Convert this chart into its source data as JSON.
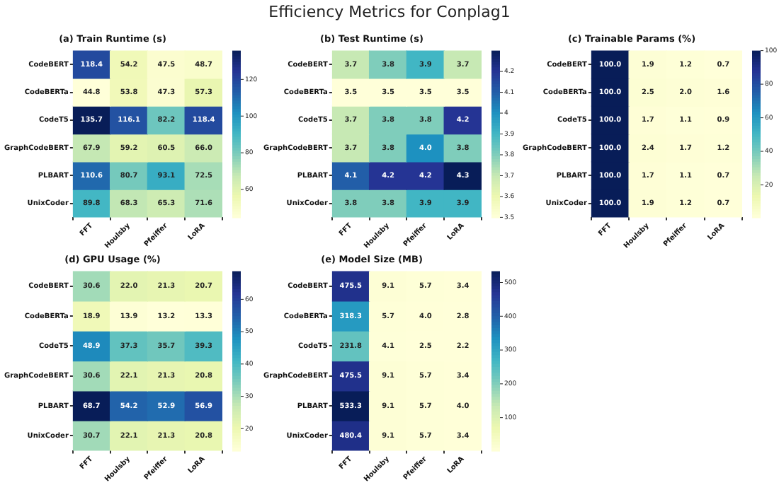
{
  "chart_data": [
    {
      "type": "other",
      "title": "Efficiency Metrics for Conplag1"
    },
    {
      "type": "heatmap",
      "title": "(a) Train Runtime (s)",
      "categories": [
        "FFT",
        "Houlsby",
        "Pfeiffer",
        "LoRA"
      ],
      "y_categories": [
        "CodeBERT",
        "CodeBERTa",
        "CodeT5",
        "GraphCodeBERT",
        "PLBART",
        "UnixCoder"
      ],
      "cells": [
        [
          118.4,
          54.2,
          47.5,
          48.7
        ],
        [
          44.8,
          53.8,
          47.3,
          57.3
        ],
        [
          135.7,
          116.1,
          82.2,
          118.4
        ],
        [
          67.9,
          59.2,
          60.5,
          66
        ],
        [
          110.6,
          80.7,
          93.1,
          72.5
        ],
        [
          89.8,
          68.3,
          65.3,
          71.6
        ]
      ],
      "cell_labels": [
        [
          "118.4",
          "54.2",
          "47.5",
          "48.7"
        ],
        [
          "44.8",
          "53.8",
          "47.3",
          "57.3"
        ],
        [
          "135.7",
          "116.1",
          "82.2",
          "118.4"
        ],
        [
          "67.9",
          "59.2",
          "60.5",
          "66.0"
        ],
        [
          "110.6",
          "80.7",
          "93.1",
          "72.5"
        ],
        [
          "89.8",
          "68.3",
          "65.3",
          "71.6"
        ]
      ],
      "clim": [
        44.8,
        135.7
      ],
      "cticks": [
        60,
        80,
        100,
        120
      ]
    },
    {
      "type": "heatmap",
      "title": "(b) Test Runtime (s)",
      "categories": [
        "FFT",
        "Houlsby",
        "Pfeiffer",
        "LoRA"
      ],
      "y_categories": [
        "CodeBERT",
        "CodeBERTa",
        "CodeT5",
        "GraphCodeBERT",
        "PLBART",
        "UnixCoder"
      ],
      "cells": [
        [
          3.7,
          3.8,
          3.9,
          3.7
        ],
        [
          3.5,
          3.5,
          3.5,
          3.5
        ],
        [
          3.7,
          3.8,
          3.8,
          4.2
        ],
        [
          3.7,
          3.8,
          4,
          3.8
        ],
        [
          4.1,
          4.2,
          4.2,
          4.3
        ],
        [
          3.8,
          3.8,
          3.9,
          3.9
        ]
      ],
      "cell_labels": [
        [
          "3.7",
          "3.8",
          "3.9",
          "3.7"
        ],
        [
          "3.5",
          "3.5",
          "3.5",
          "3.5"
        ],
        [
          "3.7",
          "3.8",
          "3.8",
          "4.2"
        ],
        [
          "3.7",
          "3.8",
          "4.0",
          "3.8"
        ],
        [
          "4.1",
          "4.2",
          "4.2",
          "4.3"
        ],
        [
          "3.8",
          "3.8",
          "3.9",
          "3.9"
        ]
      ],
      "clim": [
        3.5,
        4.3
      ],
      "cticks": [
        3.5,
        3.6,
        3.7,
        3.8,
        3.9,
        4.0,
        4.1,
        4.2
      ]
    },
    {
      "type": "heatmap",
      "title": "(c) Trainable Params (%)",
      "categories": [
        "FFT",
        "Houlsby",
        "Pfeiffer",
        "LoRA"
      ],
      "y_categories": [
        "CodeBERT",
        "CodeBERTa",
        "CodeT5",
        "GraphCodeBERT",
        "PLBART",
        "UnixCoder"
      ],
      "cells": [
        [
          100,
          1.9,
          1.2,
          0.7
        ],
        [
          100,
          2.5,
          2,
          1.6
        ],
        [
          100,
          1.7,
          1.1,
          0.9
        ],
        [
          100,
          2.4,
          1.7,
          1.2
        ],
        [
          100,
          1.7,
          1.1,
          0.7
        ],
        [
          100,
          1.9,
          1.2,
          0.7
        ]
      ],
      "cell_labels": [
        [
          "100.0",
          "1.9",
          "1.2",
          "0.7"
        ],
        [
          "100.0",
          "2.5",
          "2.0",
          "1.6"
        ],
        [
          "100.0",
          "1.7",
          "1.1",
          "0.9"
        ],
        [
          "100.0",
          "2.4",
          "1.7",
          "1.2"
        ],
        [
          "100.0",
          "1.7",
          "1.1",
          "0.7"
        ],
        [
          "100.0",
          "1.9",
          "1.2",
          "0.7"
        ]
      ],
      "clim": [
        0.7,
        100
      ],
      "cticks": [
        20,
        40,
        60,
        80,
        100
      ]
    },
    {
      "type": "heatmap",
      "title": "(d) GPU Usage (%)",
      "categories": [
        "FFT",
        "Houlsby",
        "Pfeiffer",
        "LoRA"
      ],
      "y_categories": [
        "CodeBERT",
        "CodeBERTa",
        "CodeT5",
        "GraphCodeBERT",
        "PLBART",
        "UnixCoder"
      ],
      "cells": [
        [
          30.6,
          22,
          21.3,
          20.7
        ],
        [
          18.9,
          13.9,
          13.2,
          13.3
        ],
        [
          48.9,
          37.3,
          35.7,
          39.3
        ],
        [
          30.6,
          22.1,
          21.3,
          20.8
        ],
        [
          68.7,
          54.2,
          52.9,
          56.9
        ],
        [
          30.7,
          22.1,
          21.3,
          20.8
        ]
      ],
      "cell_labels": [
        [
          "30.6",
          "22.0",
          "21.3",
          "20.7"
        ],
        [
          "18.9",
          "13.9",
          "13.2",
          "13.3"
        ],
        [
          "48.9",
          "37.3",
          "35.7",
          "39.3"
        ],
        [
          "30.6",
          "22.1",
          "21.3",
          "20.8"
        ],
        [
          "68.7",
          "54.2",
          "52.9",
          "56.9"
        ],
        [
          "30.7",
          "22.1",
          "21.3",
          "20.8"
        ]
      ],
      "clim": [
        13.2,
        68.7
      ],
      "cticks": [
        20,
        30,
        40,
        50,
        60
      ]
    },
    {
      "type": "heatmap",
      "title": "(e) Model Size (MB)",
      "categories": [
        "FFT",
        "Houlsby",
        "Pfeiffer",
        "LoRA"
      ],
      "y_categories": [
        "CodeBERT",
        "CodeBERTa",
        "CodeT5",
        "GraphCodeBERT",
        "PLBART",
        "UnixCoder"
      ],
      "cells": [
        [
          475.5,
          9.1,
          5.7,
          3.4
        ],
        [
          318.3,
          5.7,
          4,
          2.8
        ],
        [
          231.8,
          4.1,
          2.5,
          2.2
        ],
        [
          475.5,
          9.1,
          5.7,
          3.4
        ],
        [
          533.3,
          9.1,
          5.7,
          4
        ],
        [
          480.4,
          9.1,
          5.7,
          3.4
        ]
      ],
      "cell_labels": [
        [
          "475.5",
          "9.1",
          "5.7",
          "3.4"
        ],
        [
          "318.3",
          "5.7",
          "4.0",
          "2.8"
        ],
        [
          "231.8",
          "4.1",
          "2.5",
          "2.2"
        ],
        [
          "475.5",
          "9.1",
          "5.7",
          "3.4"
        ],
        [
          "533.3",
          "9.1",
          "5.7",
          "4.0"
        ],
        [
          "480.4",
          "9.1",
          "5.7",
          "3.4"
        ]
      ],
      "clim": [
        2.2,
        533.3
      ],
      "cticks": [
        100,
        200,
        300,
        400,
        500
      ]
    }
  ]
}
